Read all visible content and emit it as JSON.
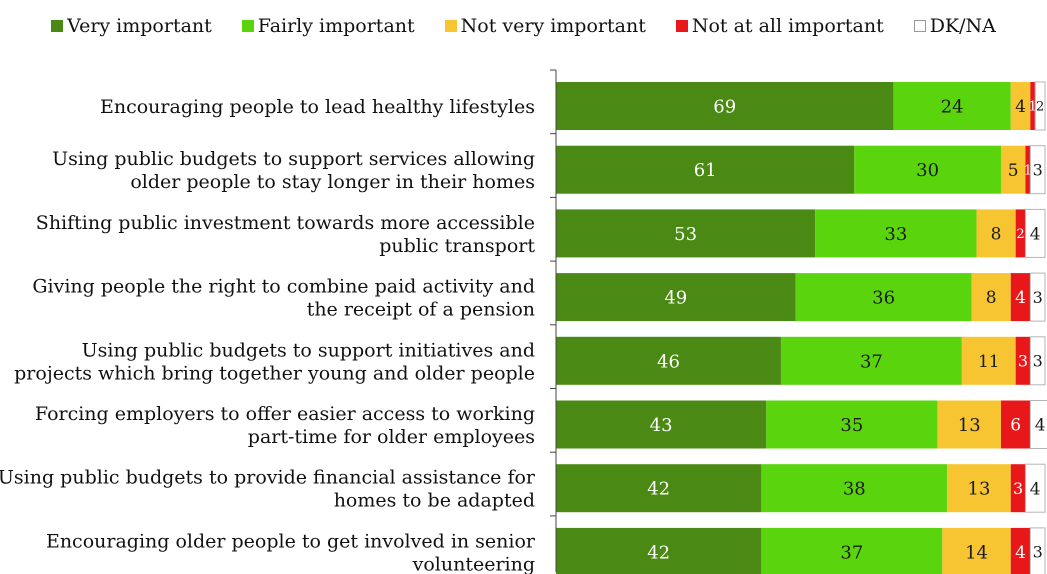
{
  "chart_data": {
    "type": "bar",
    "orientation": "horizontal",
    "stacked": true,
    "legend_position": "top",
    "title": "",
    "xlabel": "",
    "ylabel": "",
    "xlim": [
      0,
      100
    ],
    "grid": false,
    "categories": [
      [
        "Encouraging people to lead healthy lifestyles"
      ],
      [
        "Using public budgets to support services allowing",
        "older people to stay longer in their homes"
      ],
      [
        "Shifting public investment towards more accessible",
        "public transport"
      ],
      [
        "Giving people the right to combine paid activity and",
        "the receipt of a pension"
      ],
      [
        "Using public budgets to support initiatives and",
        "projects which bring together young and older people"
      ],
      [
        "Forcing employers to offer easier access to working",
        "part-time for older employees"
      ],
      [
        "Using public budgets to provide financial assistance for",
        "homes to be adapted"
      ],
      [
        "Encouraging older people to get involved in senior",
        "volunteering"
      ]
    ],
    "series": [
      {
        "name": "Very important",
        "color": "#4a8a14",
        "label_color": "#ffffff",
        "values": [
          69,
          61,
          53,
          49,
          46,
          43,
          42,
          42
        ]
      },
      {
        "name": "Fairly important",
        "color": "#5ad40c",
        "label_color": "#1a1a1a",
        "values": [
          24,
          30,
          33,
          36,
          37,
          35,
          38,
          37
        ]
      },
      {
        "name": "Not very important",
        "color": "#f7c531",
        "label_color": "#1a1a1a",
        "values": [
          4,
          5,
          8,
          8,
          11,
          13,
          13,
          14
        ]
      },
      {
        "name": "Not at all important",
        "color": "#e8181a",
        "label_color": "#ffffff",
        "values": [
          1,
          1,
          2,
          4,
          3,
          6,
          3,
          4
        ]
      },
      {
        "name": "DK/NA",
        "color": "#ffffff",
        "label_color": "#1a1a1a",
        "values": [
          2,
          3,
          4,
          3,
          3,
          4,
          4,
          3
        ]
      }
    ]
  }
}
